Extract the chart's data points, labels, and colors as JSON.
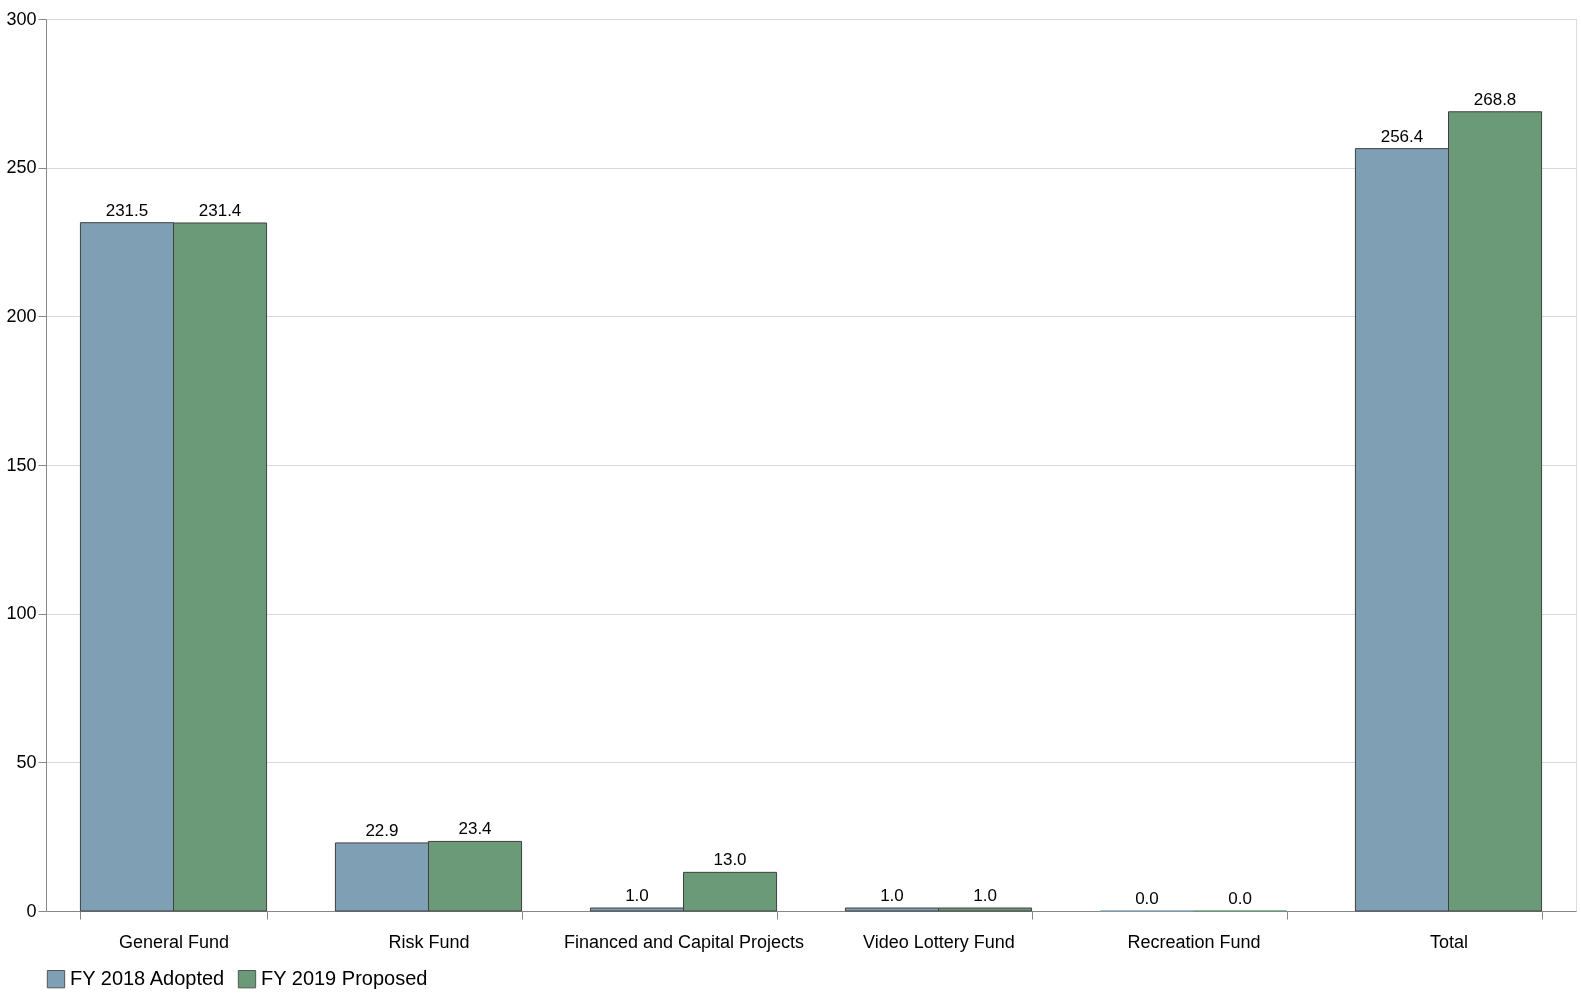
{
  "chart_data": {
    "type": "bar",
    "categories": [
      "General Fund",
      "Risk Fund",
      "Financed and Capital Projects",
      "Video Lottery Fund",
      "Recreation Fund",
      "Total"
    ],
    "series": [
      {
        "name": "FY 2018 Adopted",
        "color": "#7f9fb5",
        "values": [
          231.5,
          22.9,
          1.0,
          1.0,
          0.0,
          256.4
        ],
        "value_labels": [
          "231.5",
          "22.9",
          "1.0",
          "1.0",
          "0.0",
          "256.4"
        ]
      },
      {
        "name": "FY 2019 Proposed",
        "color": "#6a9a78",
        "values": [
          231.4,
          23.4,
          13.0,
          1.0,
          0.0,
          268.8
        ],
        "value_labels": [
          "231.4",
          "23.4",
          "13.0",
          "1.0",
          "0.0",
          "268.8"
        ]
      }
    ],
    "ylim": [
      0,
      300
    ],
    "yticks": [
      0,
      50,
      100,
      150,
      200,
      250,
      300
    ],
    "grid": "y",
    "legend": "bottom"
  }
}
